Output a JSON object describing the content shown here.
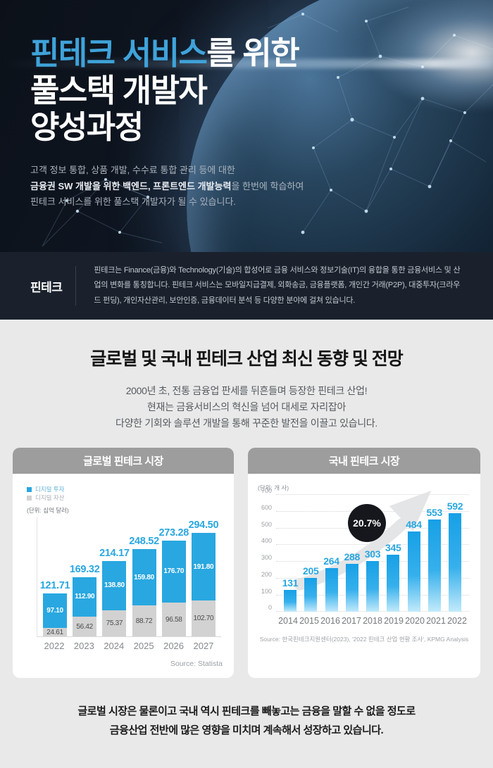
{
  "hero": {
    "title_highlight": "핀테크 서비스",
    "title_rest": "를 위한",
    "title_line2": "풀스택 개발자",
    "title_line3": "양성과정",
    "desc_line1": "고객 정보 통합, 상품 개발, 수수료 통합 관리 등에 대한",
    "desc_line2_bold": "금융권 SW 개발을 위한 백엔드, 프론트엔드 개발능력",
    "desc_line2_rest": "을 한번에 학습하여",
    "desc_line3": "핀테크 서비스를 위한 풀스택 개발자가 될 수 있습니다."
  },
  "definition": {
    "label": "핀테크",
    "text": "핀테크는 Finance(금융)와 Technology(기술)의 합성어로 금융 서비스와 정보기술(IT)의 융합을 통한 금융서비스 및 산업의 변화를 통칭합니다. 핀테크 서비스는 모바일지급결제, 외화송금, 금융플랫폼, 개인간 거래(P2P), 대중투자(크라우드 펀딩), 개인자산관리, 보안인증, 금융데이터 분석 등 다양한 분야에 걸쳐 있습니다."
  },
  "trend_section": {
    "title": "글로벌 및 국내 핀테크 산업 최신 동향 및 전망",
    "sub_line1": "2000년 초, 전통 금융업 판세를 뒤흔들며 등장한 핀테크 산업!",
    "sub_line2": "현재는 금융서비스의 혁신을 넘어 대세로 자리잡아",
    "sub_line3": "다양한 기회와 솔루션 개발을 통해 꾸준한 발전을 이끌고 있습니다."
  },
  "chart_data": [
    {
      "type": "bar",
      "stacked": true,
      "title": "글로벌 핀테크 시장",
      "unit_label": "(단위: 십억 달러)",
      "categories": [
        "2022",
        "2023",
        "2024",
        "2025",
        "2026",
        "2027"
      ],
      "series": [
        {
          "name": "디지털 투자",
          "color": "#29a7e0",
          "values": [
            "97.10",
            "112.90",
            "138.80",
            "159.80",
            "176.70",
            "191.80"
          ]
        },
        {
          "name": "디지털 자산",
          "color": "#d2d2d2",
          "values": [
            "24.61",
            "56.42",
            "75.37",
            "88.72",
            "96.58",
            "102.70"
          ]
        }
      ],
      "totals": [
        "121.71",
        "169.32",
        "214.17",
        "248.52",
        "273.28",
        "294.50"
      ],
      "legend_position": "top-left",
      "grid": false,
      "source": "Source: Statista"
    },
    {
      "type": "bar",
      "stacked": false,
      "title": "국내 핀테크 시장",
      "unit_label": "(단위: 개 사)",
      "categories": [
        "2014",
        "2015",
        "2016",
        "2017",
        "2018",
        "2019",
        "2020",
        "2021",
        "2022"
      ],
      "values": [
        131,
        205,
        264,
        288,
        303,
        345,
        484,
        553,
        592
      ],
      "ylim": [
        0,
        700
      ],
      "yticks": [
        0,
        100,
        200,
        300,
        400,
        500,
        600,
        700
      ],
      "grid": true,
      "annotation": "20.7%",
      "source": "Source: 한국핀테크지원센터(2023), '2022 핀테크 산업 현황 조사', KPMG Analysis"
    }
  ],
  "footer": {
    "line1": "글로벌 시장은 물론이고 국내 역시 핀테크를 빼놓고는 금융을 말할 수 없을 정도로",
    "line2": "금융산업 전반에 많은 영향을 미치며 계속해서 성장하고 있습니다."
  },
  "colors": {
    "accent_blue": "#29a7e0",
    "title_blue": "#3fa3da",
    "bar_gray": "#d2d2d2",
    "header_gray": "#9d9d9d",
    "badge_black": "#15171c",
    "band_bg": "#1a212c",
    "page_bg": "#e9e9e9"
  }
}
